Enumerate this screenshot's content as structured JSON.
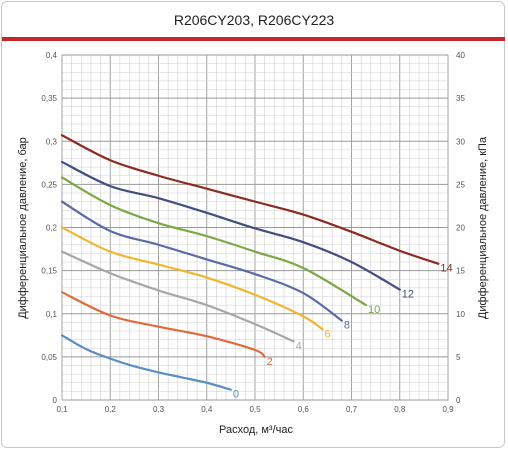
{
  "chart_data": {
    "type": "line",
    "title": "R206CY203, R206CY223",
    "xlabel": "Расход, м³/час",
    "ylabel_left": "Дифференциальное давление, бар",
    "ylabel_right": "Дифференциальное давление, кПа",
    "xlim": [
      0.1,
      0.9
    ],
    "ylim_left": [
      0,
      0.4
    ],
    "ylim_right": [
      0,
      40
    ],
    "x_ticks": [
      "0,1",
      "0,2",
      "0,3",
      "0,4",
      "0,5",
      "0,6",
      "0,7",
      "0,8",
      "0,9"
    ],
    "y_ticks_left": [
      "0",
      "0,05",
      "0,1",
      "0,15",
      "0,2",
      "0,25",
      "0,3",
      "0,35",
      "0,4"
    ],
    "y_ticks_right": [
      "0",
      "5",
      "10",
      "15",
      "20",
      "25",
      "30",
      "35",
      "40"
    ],
    "grid": true,
    "series": [
      {
        "name": "0",
        "color": "#5b8fc4",
        "x": [
          0.1,
          0.15,
          0.2,
          0.25,
          0.3,
          0.35,
          0.4,
          0.45
        ],
        "y": [
          0.075,
          0.059,
          0.048,
          0.039,
          0.032,
          0.026,
          0.02,
          0.012
        ]
      },
      {
        "name": "2",
        "color": "#e06a3b",
        "x": [
          0.1,
          0.2,
          0.3,
          0.4,
          0.5,
          0.52
        ],
        "y": [
          0.125,
          0.098,
          0.085,
          0.074,
          0.058,
          0.05
        ]
      },
      {
        "name": "4",
        "color": "#a6a6a6",
        "x": [
          0.1,
          0.2,
          0.3,
          0.4,
          0.5,
          0.58
        ],
        "y": [
          0.172,
          0.147,
          0.127,
          0.11,
          0.088,
          0.068
        ]
      },
      {
        "name": "6",
        "color": "#f2b530",
        "x": [
          0.1,
          0.2,
          0.3,
          0.4,
          0.5,
          0.6,
          0.64
        ],
        "y": [
          0.2,
          0.172,
          0.157,
          0.142,
          0.122,
          0.097,
          0.082
        ]
      },
      {
        "name": "8",
        "color": "#5c6aa8",
        "x": [
          0.1,
          0.2,
          0.3,
          0.4,
          0.5,
          0.6,
          0.68
        ],
        "y": [
          0.23,
          0.196,
          0.18,
          0.163,
          0.146,
          0.124,
          0.092
        ]
      },
      {
        "name": "10",
        "color": "#7ba844",
        "x": [
          0.1,
          0.2,
          0.3,
          0.4,
          0.5,
          0.6,
          0.73
        ],
        "y": [
          0.258,
          0.226,
          0.205,
          0.19,
          0.172,
          0.153,
          0.11
        ]
      },
      {
        "name": "12",
        "color": "#404e80",
        "x": [
          0.1,
          0.2,
          0.3,
          0.4,
          0.5,
          0.6,
          0.7,
          0.8
        ],
        "y": [
          0.276,
          0.248,
          0.234,
          0.217,
          0.199,
          0.183,
          0.16,
          0.128
        ]
      },
      {
        "name": "14",
        "color": "#8b2c22",
        "x": [
          0.1,
          0.2,
          0.3,
          0.4,
          0.5,
          0.6,
          0.7,
          0.8,
          0.88
        ],
        "y": [
          0.307,
          0.278,
          0.26,
          0.245,
          0.23,
          0.215,
          0.195,
          0.173,
          0.158
        ]
      }
    ]
  }
}
